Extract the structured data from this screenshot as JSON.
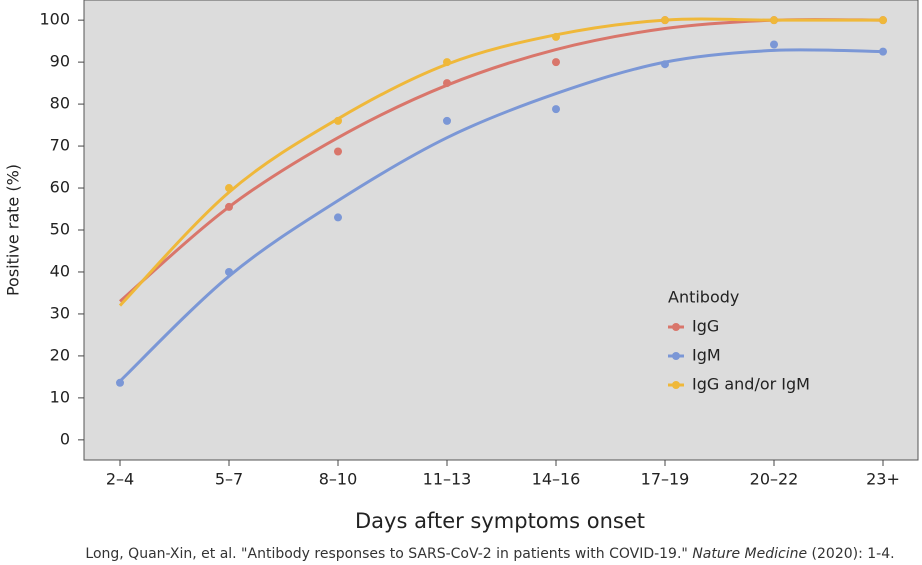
{
  "chart_data": {
    "type": "line",
    "x_label": "Days after symptoms onset",
    "y_label": "Positive rate (%)",
    "categories": [
      "2–4",
      "5–7",
      "8–10",
      "11–13",
      "14–16",
      "17–19",
      "20–22",
      "23+"
    ],
    "ylim": [
      -4.8,
      104.8
    ],
    "yticks": [
      0,
      10,
      20,
      30,
      40,
      50,
      60,
      70,
      80,
      90,
      100
    ],
    "legend_title": "Antibody",
    "legend_position": "lower right",
    "series": [
      {
        "name": "IgG",
        "color": "#d9766b",
        "values": [
          null,
          55.5,
          68.7,
          85,
          90,
          100,
          100,
          100
        ],
        "fit_values": [
          33,
          55.5,
          72,
          84.5,
          93,
          98,
          100,
          100
        ]
      },
      {
        "name": "IgM",
        "color": "#7b97d6",
        "values": [
          13.6,
          40,
          53,
          76,
          78.8,
          89.5,
          94.2,
          92.5
        ],
        "fit_values": [
          14,
          39,
          57,
          72,
          82.5,
          90,
          92.8,
          92.5
        ]
      },
      {
        "name": "IgG and/or IgM",
        "color": "#efb83a",
        "values": [
          null,
          60,
          76,
          90,
          96,
          100,
          100,
          100
        ],
        "fit_values": [
          32,
          59,
          76.5,
          89.5,
          96.5,
          100,
          100,
          100
        ]
      }
    ],
    "caption_before": "Long, Quan-Xin, et al. \"Antibody responses to SARS-CoV-2 in patients with COVID-19.\" ",
    "caption_journal": "Nature Medicine",
    "caption_after": " (2020): 1-4."
  }
}
